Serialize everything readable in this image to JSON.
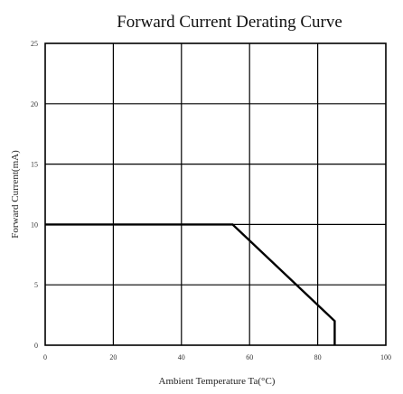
{
  "chart_data": {
    "type": "line",
    "title": "Forward Current Derating Curve",
    "xlabel": "Ambient Temperature Ta(°C)",
    "ylabel": "Forward Current(mA)",
    "xlim": [
      0,
      100
    ],
    "ylim": [
      0,
      25
    ],
    "xticks": [
      "0",
      "20",
      "40",
      "60",
      "80",
      "100"
    ],
    "yticks": [
      "0",
      "5",
      "10",
      "15",
      "20",
      "25"
    ],
    "grid": true,
    "series": [
      {
        "x": [
          0,
          55,
          85,
          85
        ],
        "y": [
          10,
          10,
          2,
          0
        ]
      }
    ]
  }
}
